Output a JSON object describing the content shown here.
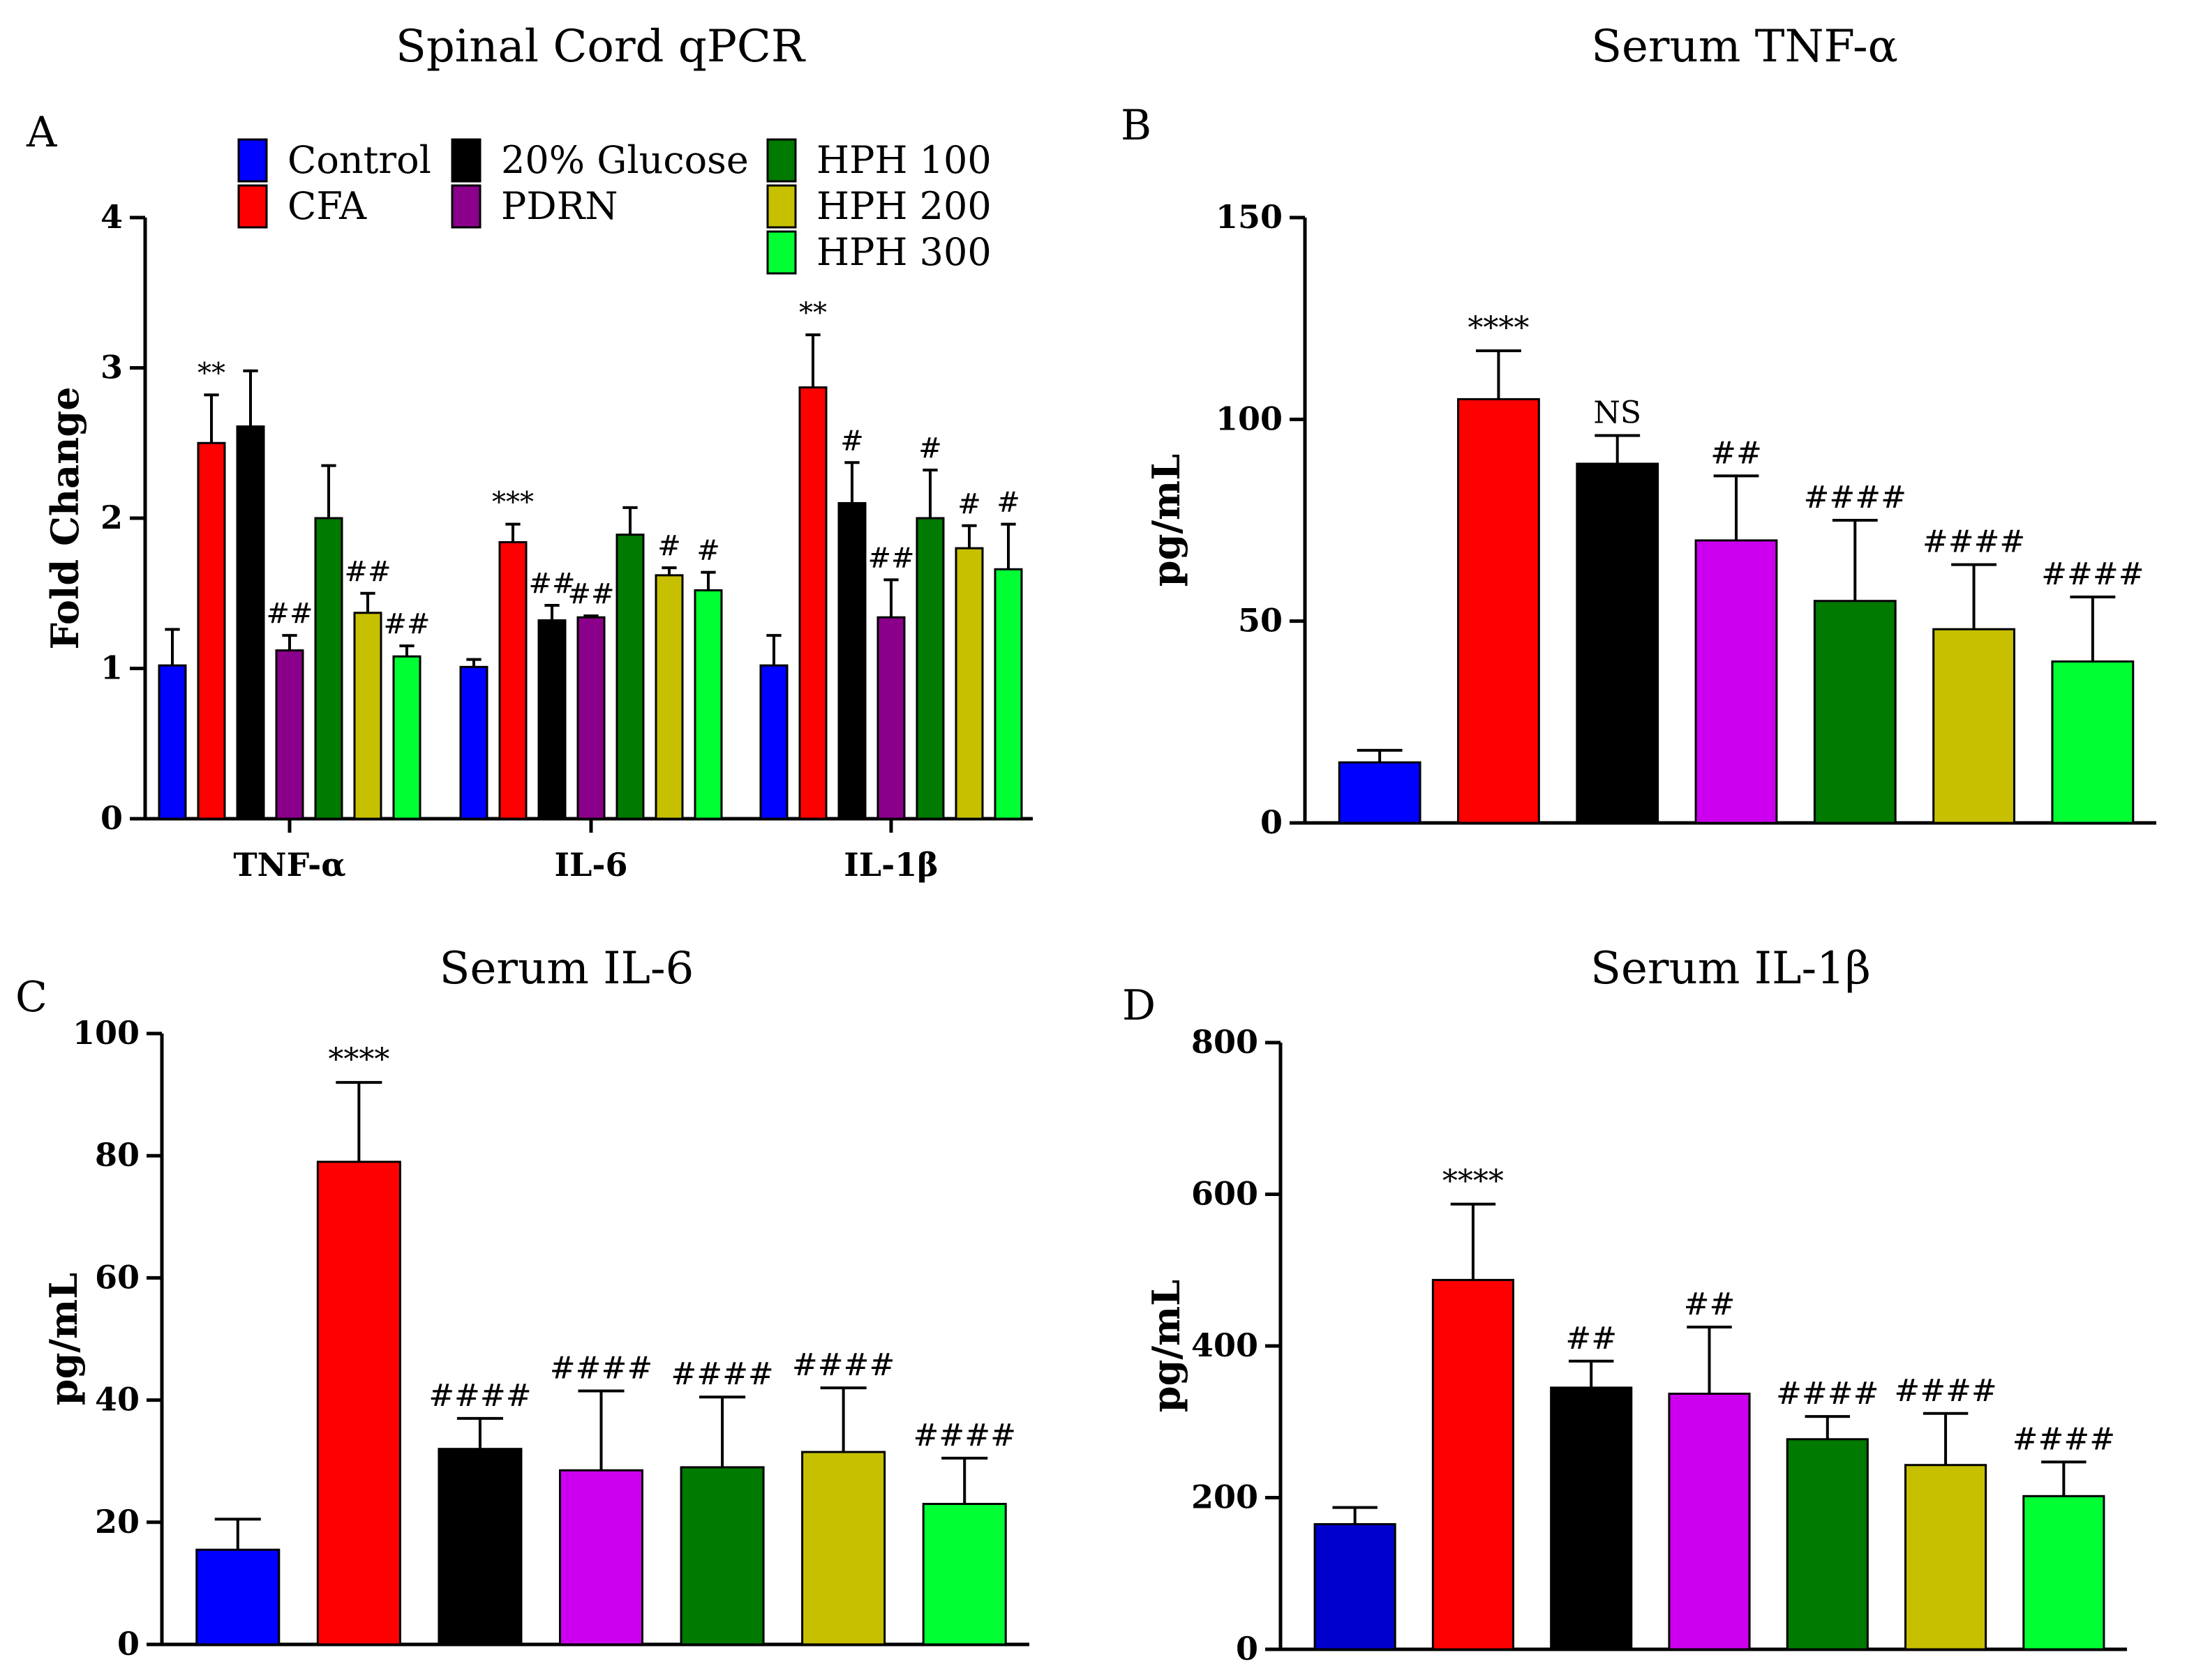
{
  "chart_data": [
    {
      "panel": "A",
      "type": "bar",
      "title": "Spinal Cord qPCR",
      "xlabel": "",
      "ylabel": "Fold Change",
      "ylim": [
        0,
        4
      ],
      "yticks": [
        "0",
        "1",
        "2",
        "3",
        "4"
      ],
      "categories": [
        "TNF-α",
        "IL-6",
        "IL-1β"
      ],
      "legend_position": "top",
      "series": [
        {
          "name": "Control",
          "color": "#0000ff",
          "values": [
            1.02,
            1.01,
            1.02
          ],
          "errors": [
            0.24,
            0.05,
            0.2
          ],
          "annotations": [
            "",
            "",
            ""
          ]
        },
        {
          "name": "CFA",
          "color": "#ff0000",
          "values": [
            2.5,
            1.84,
            2.87
          ],
          "errors": [
            0.32,
            0.12,
            0.35
          ],
          "annotations": [
            "**",
            "***",
            "**"
          ]
        },
        {
          "name": "20% Glucose",
          "color": "#000000",
          "values": [
            2.61,
            1.32,
            2.1
          ],
          "errors": [
            0.37,
            0.1,
            0.27
          ],
          "annotations": [
            "",
            "##",
            "#"
          ]
        },
        {
          "name": "PDRN",
          "color": "#8b008b",
          "values": [
            1.12,
            1.34,
            1.34
          ],
          "errors": [
            0.1,
            0.01,
            0.25
          ],
          "annotations": [
            "##",
            "##",
            "##"
          ]
        },
        {
          "name": "HPH 100",
          "color": "#007a00",
          "values": [
            2.0,
            1.89,
            2.0
          ],
          "errors": [
            0.35,
            0.18,
            0.32
          ],
          "annotations": [
            "",
            "",
            "#"
          ]
        },
        {
          "name": "HPH 200",
          "color": "#c7c000",
          "values": [
            1.37,
            1.62,
            1.8
          ],
          "errors": [
            0.13,
            0.05,
            0.15
          ],
          "annotations": [
            "##",
            "#",
            "#"
          ]
        },
        {
          "name": "HPH 300",
          "color": "#00ff33",
          "values": [
            1.08,
            1.52,
            1.66
          ],
          "errors": [
            0.07,
            0.12,
            0.3
          ],
          "annotations": [
            "##",
            "#",
            "#"
          ]
        }
      ]
    },
    {
      "panel": "B",
      "type": "bar",
      "title": "Serum TNF-α",
      "xlabel": "",
      "ylabel": "pg/mL",
      "ylim": [
        0,
        150
      ],
      "yticks": [
        "0",
        "50",
        "100",
        "150"
      ],
      "categories": [
        "Control",
        "CFA",
        "20% Glucose",
        "PDRN",
        "HPH 100",
        "HPH 200",
        "HPH 300"
      ],
      "colors": [
        "#0000ff",
        "#ff0000",
        "#000000",
        "#cc00ee",
        "#007a00",
        "#c7c000",
        "#00ff33"
      ],
      "values": [
        15,
        105,
        89,
        70,
        55,
        48,
        40
      ],
      "errors": [
        3,
        12,
        7,
        16,
        20,
        16,
        16
      ],
      "annotations": [
        "",
        "****",
        "NS",
        "##",
        "####",
        "####",
        "####"
      ]
    },
    {
      "panel": "C",
      "type": "bar",
      "title": "Serum IL-6",
      "xlabel": "",
      "ylabel": "pg/mL",
      "ylim": [
        0,
        100
      ],
      "yticks": [
        "0",
        "20",
        "40",
        "60",
        "80",
        "100"
      ],
      "categories": [
        "Control",
        "CFA",
        "20% Glucose",
        "PDRN",
        "HPH 100",
        "HPH 200",
        "HPH 300"
      ],
      "colors": [
        "#0000ff",
        "#ff0000",
        "#000000",
        "#cc00ee",
        "#007a00",
        "#c7c000",
        "#00ff33"
      ],
      "values": [
        15.5,
        79,
        32,
        28.5,
        29,
        31.5,
        23
      ],
      "errors": [
        5,
        13,
        5,
        13,
        11.5,
        10.5,
        7.5
      ],
      "annotations": [
        "",
        "****",
        "####",
        "####",
        "####",
        "####",
        "####"
      ]
    },
    {
      "panel": "D",
      "type": "bar",
      "title": "Serum IL-1β",
      "xlabel": "",
      "ylabel": "pg/mL",
      "ylim": [
        0,
        800
      ],
      "yticks": [
        "0",
        "200",
        "400",
        "600",
        "800"
      ],
      "categories": [
        "Control",
        "CFA",
        "20% Glucose",
        "PDRN",
        "HPH 100",
        "HPH 200",
        "HPH 300"
      ],
      "colors": [
        "#0000cc",
        "#ff0000",
        "#000000",
        "#cc00ee",
        "#007a00",
        "#c7c000",
        "#00ff33"
      ],
      "values": [
        165,
        487,
        345,
        337,
        277,
        243,
        202
      ],
      "errors": [
        22,
        100,
        35,
        88,
        30,
        68,
        45
      ],
      "annotations": [
        "",
        "****",
        "##",
        "##",
        "####",
        "####",
        "####"
      ]
    }
  ]
}
